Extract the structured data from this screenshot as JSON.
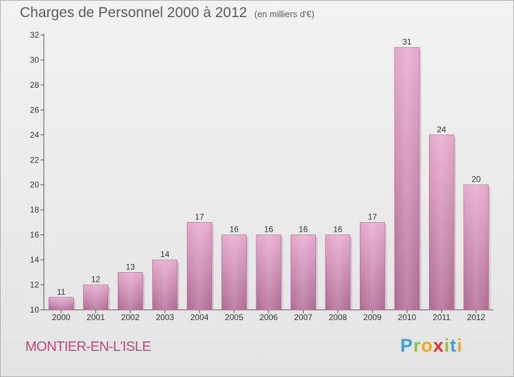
{
  "header": {
    "title": "Charges de Personnel 2000 à 2012",
    "subtitle": "(en milliers d'€)"
  },
  "footer": {
    "commune": "MONTIER-EN-L'ISLE",
    "logo_text": "Proxiti",
    "logo_letters": [
      {
        "ch": "P",
        "color": "#3aa0d8"
      },
      {
        "ch": "r",
        "color": "#8cc63f"
      },
      {
        "ch": "o",
        "color": "#f7a21b"
      },
      {
        "ch": "x",
        "color": "#e6332a"
      },
      {
        "ch": "i",
        "color": "#8cc63f"
      },
      {
        "ch": "t",
        "color": "#3aa0d8"
      },
      {
        "ch": "i",
        "color": "#f7a21b"
      }
    ]
  },
  "chart_data": {
    "type": "bar",
    "title": "Charges de Personnel 2000 à 2012",
    "subtitle": "(en milliers d'€)",
    "categories": [
      "2000",
      "2001",
      "2002",
      "2003",
      "2004",
      "2005",
      "2006",
      "2007",
      "2008",
      "2009",
      "2010",
      "2011",
      "2012"
    ],
    "values": [
      11,
      12,
      13,
      14,
      17,
      16,
      16,
      16,
      16,
      17,
      31,
      24,
      20
    ],
    "ylim": [
      10,
      32
    ],
    "yticks": [
      10,
      12,
      14,
      16,
      18,
      20,
      22,
      24,
      26,
      28,
      30,
      32
    ],
    "grid": false,
    "bar_color": "#d98ab6",
    "data_labels": true
  }
}
